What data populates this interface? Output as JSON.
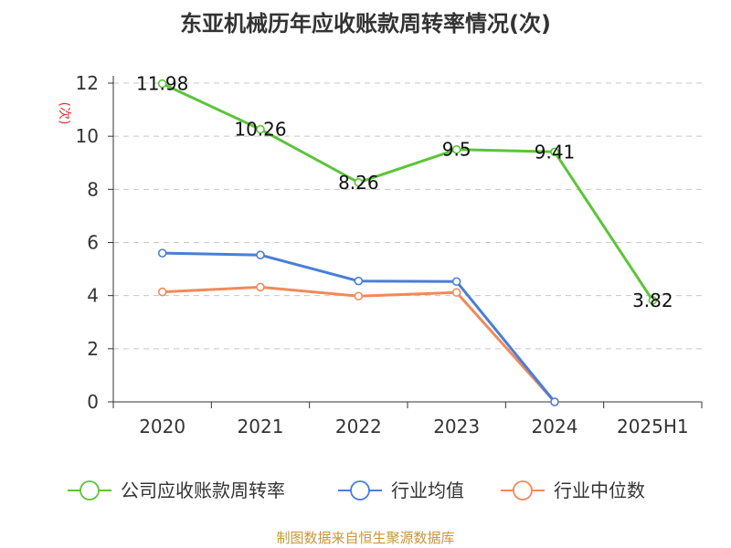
{
  "chart_data": {
    "type": "line",
    "title": "东亚机械历年应收账款周转率情况(次)",
    "ylabel": "(次)",
    "xlabel": "",
    "categories": [
      "2020",
      "2021",
      "2022",
      "2023",
      "2024",
      "2025H1"
    ],
    "ylim": [
      0,
      12
    ],
    "yticks": [
      0,
      2,
      4,
      6,
      8,
      10,
      12
    ],
    "grid": true,
    "legend_position": "bottom",
    "series": [
      {
        "name": "公司应收账款周转率",
        "color": "#5cc43a",
        "values": [
          11.98,
          10.26,
          8.26,
          9.5,
          9.41,
          3.82
        ],
        "labels": [
          "11.98",
          "10.26",
          "8.26",
          "9.5",
          "9.41",
          "3.82"
        ],
        "show_labels": true
      },
      {
        "name": "行业均值",
        "color": "#4a7ed6",
        "values": [
          5.6,
          5.53,
          4.55,
          4.53,
          0,
          null
        ],
        "show_labels": false
      },
      {
        "name": "行业中位数",
        "color": "#f08a5a",
        "values": [
          4.14,
          4.32,
          3.98,
          4.12,
          0,
          null
        ],
        "show_labels": false
      }
    ]
  },
  "source": "制图数据来自恒生聚源数据库"
}
